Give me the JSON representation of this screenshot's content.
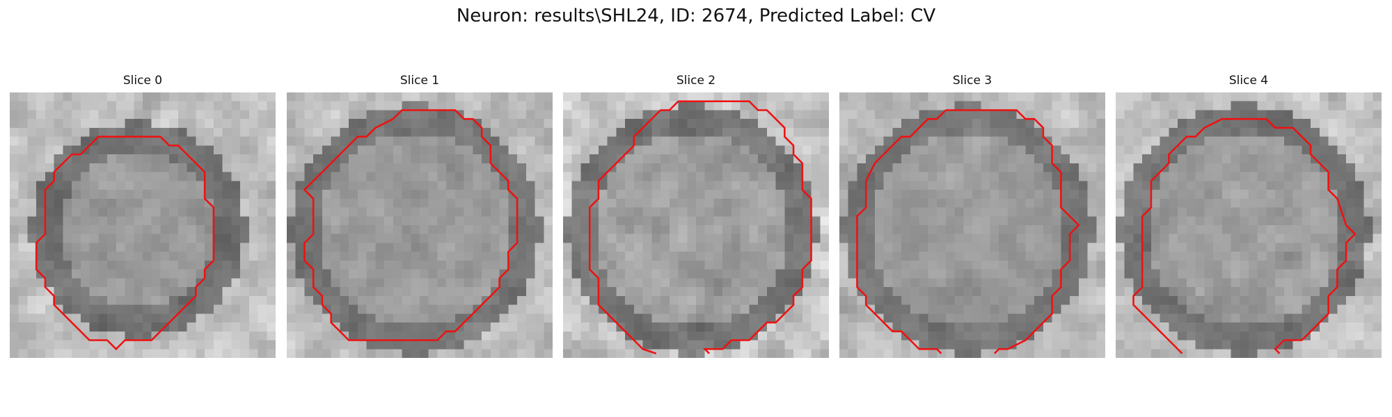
{
  "figure": {
    "title": "Neuron: results\\SHL24, ID: 2674, Predicted Label: CV"
  },
  "colors": {
    "contour": "#ee1111",
    "background": "#ffffff"
  },
  "panels": [
    {
      "title": "Slice 0",
      "seed": 11,
      "contrast": 0.9
    },
    {
      "title": "Slice 1",
      "seed": 23,
      "contrast": 0.85
    },
    {
      "title": "Slice 2",
      "seed": 37,
      "contrast": 1.0
    },
    {
      "title": "Slice 3",
      "seed": 49,
      "contrast": 0.8
    },
    {
      "title": "Slice 4",
      "seed": 61,
      "contrast": 0.9
    }
  ]
}
